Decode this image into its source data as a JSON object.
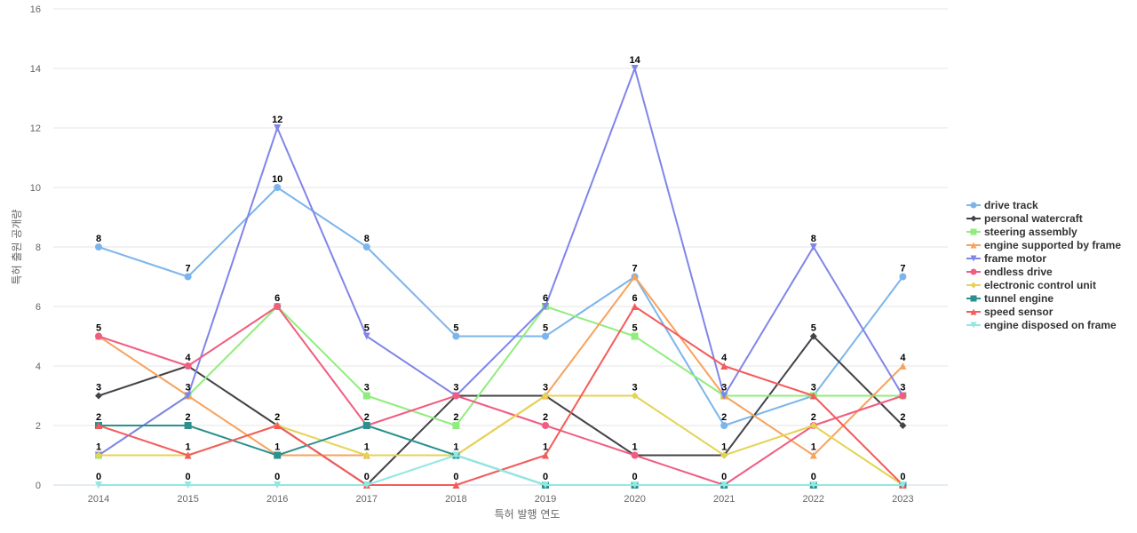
{
  "chart_data": {
    "type": "line",
    "xlabel": "특허 발행 연도",
    "ylabel": "특허 출원 공개량",
    "x": [
      "2014",
      "2015",
      "2016",
      "2017",
      "2018",
      "2019",
      "2020",
      "2021",
      "2022",
      "2023"
    ],
    "ylim": [
      0,
      16
    ],
    "yticks": [
      "0",
      "2",
      "4",
      "6",
      "8",
      "10",
      "12",
      "14",
      "16"
    ],
    "grid": "horizontal",
    "legend_position": "right",
    "series": [
      {
        "name": "drive track",
        "color": "#7cb5ec",
        "marker": "circle",
        "values": [
          8,
          7,
          10,
          8,
          5,
          5,
          7,
          2,
          3,
          7
        ]
      },
      {
        "name": "personal watercraft",
        "color": "#434348",
        "marker": "diamond",
        "values": [
          3,
          4,
          2,
          0,
          3,
          3,
          1,
          1,
          5,
          2
        ]
      },
      {
        "name": "steering assembly",
        "color": "#90ed7d",
        "marker": "square",
        "values": [
          1,
          3,
          6,
          3,
          2,
          6,
          5,
          3,
          3,
          3
        ]
      },
      {
        "name": "engine supported by frame",
        "color": "#f7a35c",
        "marker": "triangle",
        "values": [
          5,
          3,
          1,
          1,
          1,
          3,
          7,
          3,
          1,
          4
        ]
      },
      {
        "name": "frame motor",
        "color": "#8085e9",
        "marker": "triangle-down",
        "values": [
          1,
          3,
          12,
          5,
          3,
          6,
          14,
          3,
          8,
          3
        ]
      },
      {
        "name": "endless drive",
        "color": "#f15c80",
        "marker": "circle",
        "values": [
          5,
          4,
          6,
          2,
          3,
          2,
          1,
          0,
          2,
          3
        ]
      },
      {
        "name": "electronic control unit",
        "color": "#e4d354",
        "marker": "diamond",
        "values": [
          1,
          1,
          2,
          1,
          1,
          3,
          3,
          1,
          2,
          0
        ]
      },
      {
        "name": "tunnel engine",
        "color": "#2b908f",
        "marker": "square",
        "values": [
          2,
          2,
          1,
          2,
          1,
          0,
          0,
          0,
          0,
          0
        ]
      },
      {
        "name": "speed sensor",
        "color": "#f45b5b",
        "marker": "triangle",
        "values": [
          2,
          1,
          2,
          0,
          0,
          1,
          6,
          4,
          3,
          0
        ]
      },
      {
        "name": "engine disposed on frame",
        "color": "#91e8e1",
        "marker": "triangle-down",
        "values": [
          0,
          0,
          0,
          0,
          1,
          0,
          0,
          0,
          0,
          0
        ]
      }
    ],
    "data_labels": [
      {
        "x": "2014",
        "labels": [
          "8",
          "5",
          "3",
          "2",
          "1",
          "0"
        ]
      },
      {
        "x": "2015",
        "labels": [
          "7",
          "4",
          "3",
          "2",
          "1",
          "0"
        ]
      },
      {
        "x": "2016",
        "labels": [
          "12",
          "10",
          "6",
          "2",
          "1",
          "0"
        ]
      },
      {
        "x": "2017",
        "labels": [
          "8",
          "5",
          "3",
          "2",
          "1",
          "0"
        ]
      },
      {
        "x": "2018",
        "labels": [
          "5",
          "3",
          "2",
          "1",
          "0"
        ]
      },
      {
        "x": "2019",
        "labels": [
          "6",
          "5",
          "3",
          "2",
          "1",
          "0"
        ]
      },
      {
        "x": "2020",
        "labels": [
          "14",
          "7",
          "6",
          "5",
          "3",
          "1",
          "0"
        ]
      },
      {
        "x": "2021",
        "labels": [
          "4",
          "3",
          "2",
          "1",
          "0"
        ]
      },
      {
        "x": "2022",
        "labels": [
          "8",
          "5",
          "3",
          "2",
          "1",
          "0"
        ]
      },
      {
        "x": "2023",
        "labels": [
          "7",
          "4",
          "3",
          "2",
          "0"
        ]
      }
    ]
  }
}
